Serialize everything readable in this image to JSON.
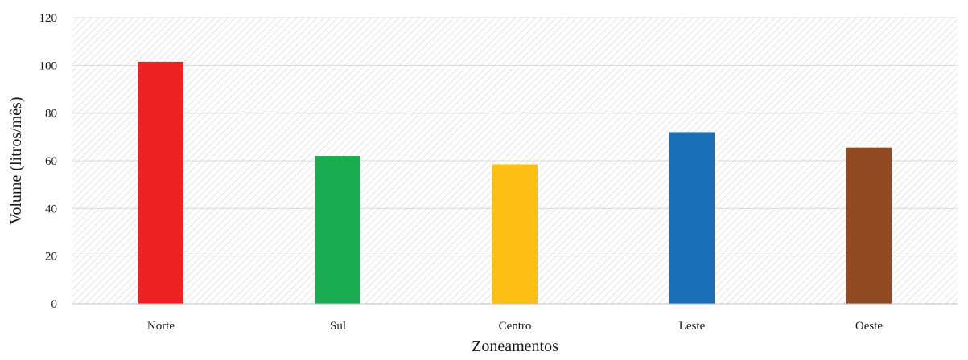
{
  "chart_data": {
    "type": "bar",
    "title": "",
    "xlabel": "Zoneamentos",
    "ylabel": "Volume (litros/mês)",
    "categories": [
      "Norte",
      "Sul",
      "Centro",
      "Leste",
      "Oeste"
    ],
    "values": [
      101.5,
      62,
      58.5,
      72,
      65.5
    ],
    "colors": [
      "#ed2224",
      "#1aac4f",
      "#fdbe16",
      "#1b6fb7",
      "#924a22"
    ],
    "ylim": [
      0,
      120
    ],
    "yticks": [
      0,
      20,
      40,
      60,
      80,
      100,
      120
    ],
    "grid": true,
    "background_pattern": "diagonal-hatch",
    "legend": "none"
  }
}
